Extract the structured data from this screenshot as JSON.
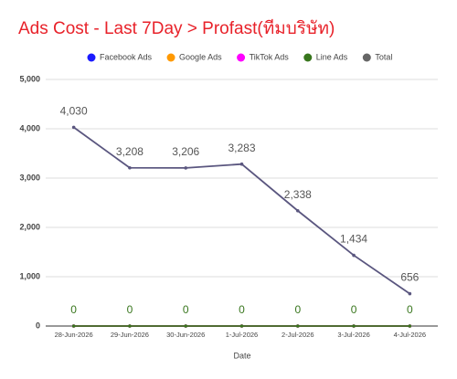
{
  "chart_data": {
    "type": "line",
    "title": "Ads Cost - Last 7Day > Profast(ทีมบริษัท)",
    "x_label": "Date",
    "categories": [
      "28-Jun-2026",
      "29-Jun-2026",
      "30-Jun-2026",
      "1-Jul-2026",
      "2-Jul-2026",
      "3-Jul-2026",
      "4-Jul-2026"
    ],
    "series": [
      {
        "name": "Facebook Ads",
        "color": "#1a1aff",
        "values": [
          0,
          0,
          0,
          0,
          0,
          0,
          0
        ]
      },
      {
        "name": "Google Ads",
        "color": "#ff9900",
        "values": [
          0,
          0,
          0,
          0,
          0,
          0,
          0
        ]
      },
      {
        "name": "TikTok Ads",
        "color": "#ff00ff",
        "values": [
          0,
          0,
          0,
          0,
          0,
          0,
          0
        ]
      },
      {
        "name": "Line Ads",
        "color": "#38761d",
        "values": [
          0,
          0,
          0,
          0,
          0,
          0,
          0
        ],
        "data_labels": true
      },
      {
        "name": "Total",
        "color": "#5a567f",
        "values": [
          4030,
          3208,
          3206,
          3283,
          2338,
          1434,
          656
        ],
        "data_labels": true,
        "value_labels": [
          "4,030",
          "3,208",
          "3,206",
          "3,283",
          "2,338",
          "1,434",
          "656"
        ]
      }
    ],
    "ylim": [
      0,
      5000
    ],
    "yticks": [
      0,
      {
        "value": 1000,
        "label": "1,000"
      },
      {
        "value": 2000,
        "label": "2,000"
      },
      {
        "value": 3000,
        "label": "3,000"
      },
      {
        "value": 4000,
        "label": "4,000"
      },
      {
        "value": 5000,
        "label": "5,000"
      }
    ],
    "grid": true,
    "legend": "top"
  }
}
